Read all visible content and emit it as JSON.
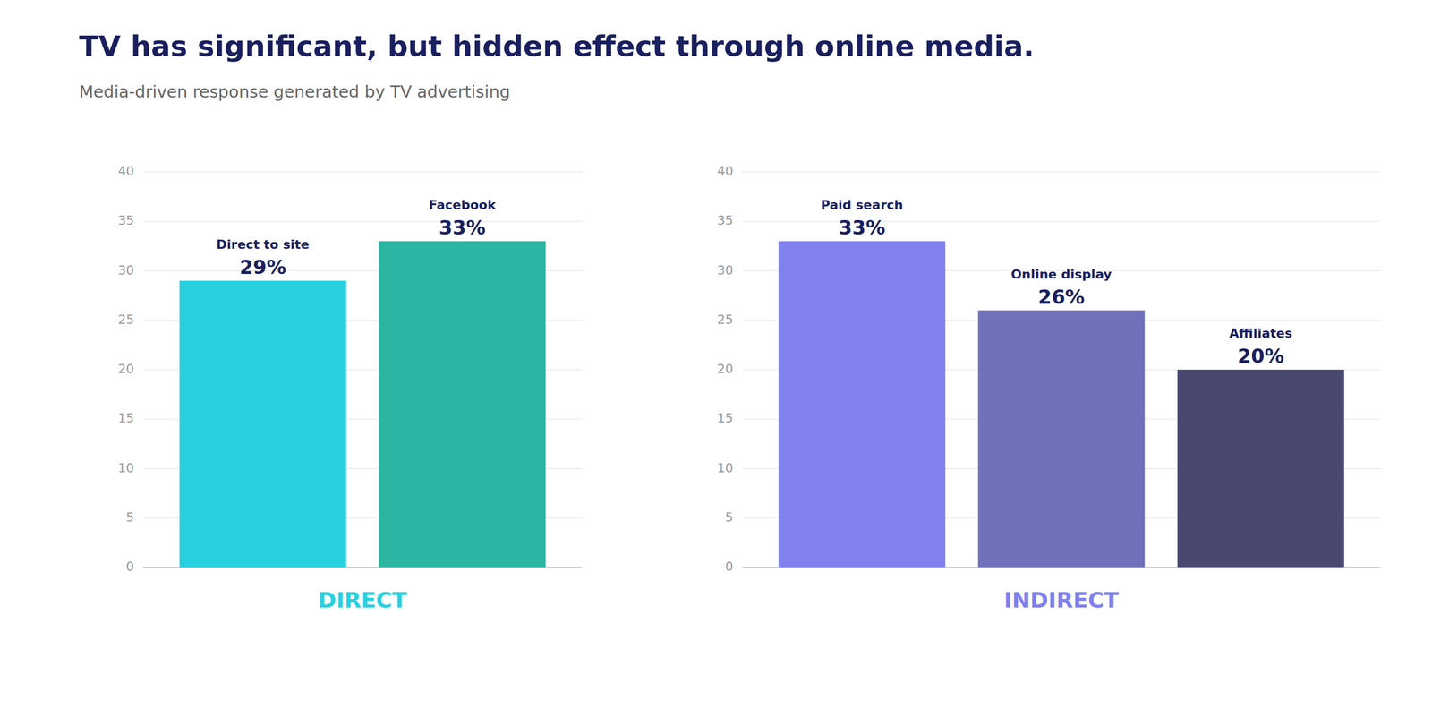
{
  "chart_data": [
    {
      "type": "bar",
      "title": "TV has significant, but hidden effect through online media.",
      "subtitle": "Media-driven response generated by TV advertising",
      "xlabel": "DIRECT",
      "categories": [
        "Direct to site",
        "Facebook"
      ],
      "values": [
        29,
        33
      ],
      "value_labels": [
        "29%",
        "33%"
      ],
      "colors": [
        "#29d0e0",
        "#2cb5a0"
      ],
      "ylim": [
        0,
        40
      ],
      "yticks": [
        0,
        5,
        10,
        15,
        20,
        25,
        30,
        35,
        40
      ],
      "grid": true,
      "data_labels": true,
      "tick_labels": "y"
    },
    {
      "type": "bar",
      "xlabel": "INDIRECT",
      "categories": [
        "Paid search",
        "Online display",
        "Affiliates"
      ],
      "values": [
        33,
        26,
        20
      ],
      "value_labels": [
        "33%",
        "26%",
        "20%"
      ],
      "colors": [
        "#8080ee",
        "#7070bb",
        "#484870"
      ],
      "ylim": [
        0,
        40
      ],
      "yticks": [
        0,
        5,
        10,
        15,
        20,
        25,
        30,
        35,
        40
      ],
      "grid": true,
      "data_labels": true,
      "tick_labels": "y"
    }
  ]
}
